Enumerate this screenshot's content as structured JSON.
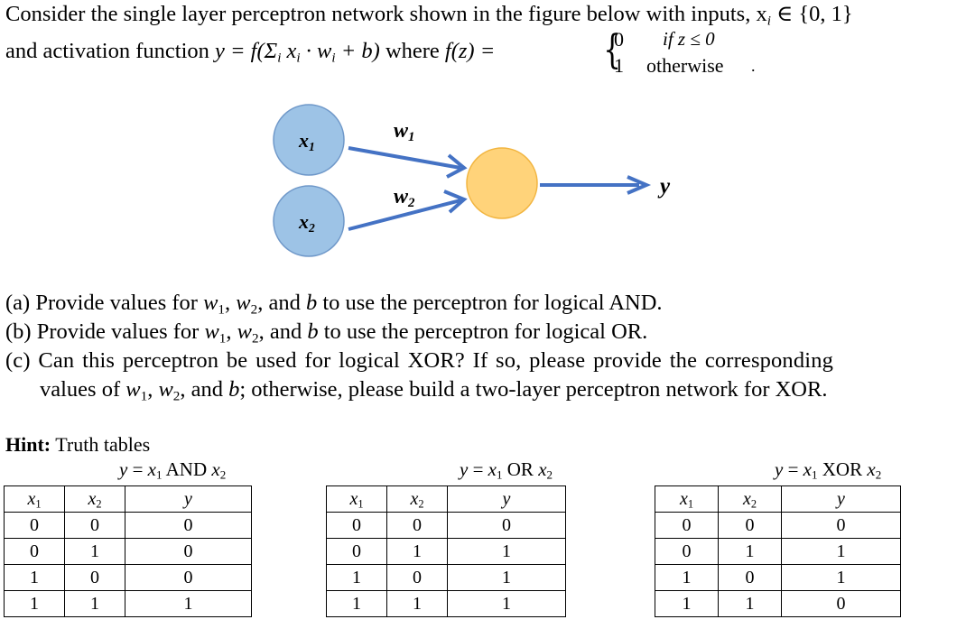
{
  "problem": {
    "line1": "Consider the single layer perceptron network shown in the figure below with inputs, x",
    "line1_sub": "i",
    "line1_set": " ∈ {0, 1}",
    "line2_prefix": "and activation function ",
    "line2_formula": "y = f(Σ",
    "line2_formula_sub": "i",
    "line2_formula_rest": " x",
    "line2_formula_rest2": " · w",
    "line2_formula_rest3": " + b)",
    "line2_where": " where ",
    "line2_fz": "f(z) = ",
    "piece_top_value": "0",
    "piece_top_cond": "if z ≤ 0",
    "piece_bottom_value": "1",
    "piece_bottom_cond": "otherwise"
  },
  "diagram": {
    "input1_label": "x",
    "input1_sub": "1",
    "input2_label": "x",
    "input2_sub": "2",
    "weight1_label": "w",
    "weight1_sub": "1",
    "weight2_label": "w",
    "weight2_sub": "2",
    "output_label": "y",
    "colors": {
      "input_fill": "#9dc3e6",
      "input_stroke": "#6f98c9",
      "neuron_fill": "#ffd37a",
      "neuron_stroke": "#f2b540",
      "arrow": "#4472c4"
    }
  },
  "questions": [
    {
      "prefix": "(a) Provide values for ",
      "w1": "w",
      "s1": "1",
      "mid1": ", ",
      "w2": "w",
      "s2": "2",
      "mid2": ", and ",
      "b": "b",
      "suffix": " to use the perceptron for logical AND."
    },
    {
      "prefix": "(b) Provide values for ",
      "w1": "w",
      "s1": "1",
      "mid1": ", ",
      "w2": "w",
      "s2": "2",
      "mid2": ", and ",
      "b": "b",
      "suffix": " to use the perceptron for logical OR."
    }
  ],
  "question_c": {
    "line1": "(c) Can this perceptron be used for logical XOR? If so, please provide the corresponding",
    "line2_prefix": "values of ",
    "w1": "w",
    "s1": "1",
    "mid1": ", ",
    "w2": "w",
    "s2": "2",
    "mid2": ", and ",
    "b": "b",
    "line2_suffix": "; otherwise, please build a two-layer perceptron network for XOR."
  },
  "hint": {
    "label": "Hint:",
    "text": " Truth tables"
  },
  "tables": [
    {
      "title_y": "y",
      "title_eq": " = ",
      "title_x1": "x",
      "title_x1_sub": "1",
      "title_op": " AND ",
      "title_x2": "x",
      "title_x2_sub": "2",
      "headers": [
        "x",
        "x",
        "y"
      ],
      "header_subs": [
        "1",
        "2",
        ""
      ],
      "rows": [
        [
          "0",
          "0",
          "0"
        ],
        [
          "0",
          "1",
          "0"
        ],
        [
          "1",
          "0",
          "0"
        ],
        [
          "1",
          "1",
          "1"
        ]
      ]
    },
    {
      "title_y": "y",
      "title_eq": " = ",
      "title_x1": "x",
      "title_x1_sub": "1",
      "title_op": " OR ",
      "title_x2": "x",
      "title_x2_sub": "2",
      "headers": [
        "x",
        "x",
        "y"
      ],
      "header_subs": [
        "1",
        "2",
        ""
      ],
      "rows": [
        [
          "0",
          "0",
          "0"
        ],
        [
          "0",
          "1",
          "1"
        ],
        [
          "1",
          "0",
          "1"
        ],
        [
          "1",
          "1",
          "1"
        ]
      ]
    },
    {
      "title_y": "y",
      "title_eq": " = ",
      "title_x1": "x",
      "title_x1_sub": "1",
      "title_op": " XOR ",
      "title_x2": "x",
      "title_x2_sub": "2",
      "headers": [
        "x",
        "x",
        "y"
      ],
      "header_subs": [
        "1",
        "2",
        ""
      ],
      "rows": [
        [
          "0",
          "0",
          "0"
        ],
        [
          "0",
          "1",
          "1"
        ],
        [
          "1",
          "0",
          "1"
        ],
        [
          "1",
          "1",
          "0"
        ]
      ]
    }
  ]
}
